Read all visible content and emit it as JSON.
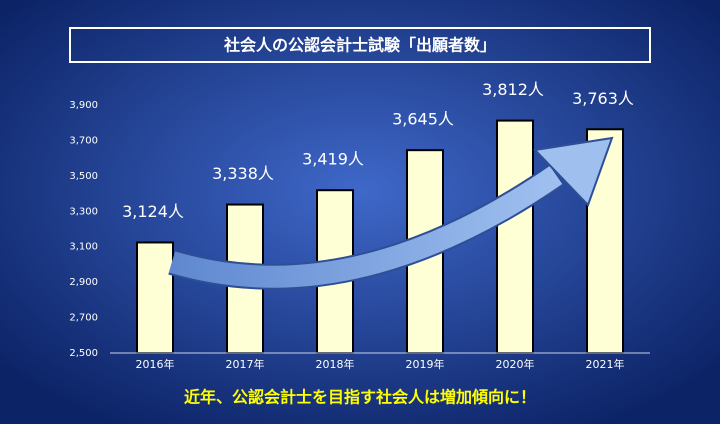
{
  "chart_data": {
    "type": "bar",
    "title": "社会人の公認会計士試験「出願者数」",
    "categories": [
      "2016年",
      "2017年",
      "2018年",
      "2019年",
      "2020年",
      "2021年"
    ],
    "values": [
      3124,
      3338,
      3419,
      3645,
      3812,
      3763
    ],
    "value_labels": [
      "3,124人",
      "3,338人",
      "3,419人",
      "3,645人",
      "3,812人",
      "3,763人"
    ],
    "color": "#ffffd6",
    "ylim": [
      2500,
      3900
    ],
    "yticks": [
      {
        "value": 2500,
        "label": "2,500"
      },
      {
        "value": 2700,
        "label": "2,700"
      },
      {
        "value": 2900,
        "label": "2,900"
      },
      {
        "value": 3100,
        "label": "3,100"
      },
      {
        "value": 3300,
        "label": "3,300"
      },
      {
        "value": 3500,
        "label": "3,500"
      },
      {
        "value": 3700,
        "label": "3,700"
      },
      {
        "value": 3900,
        "label": "3,900"
      }
    ],
    "grid": false,
    "annotation": "近年、公認会計士を目指す社会人は増加傾向に！"
  }
}
